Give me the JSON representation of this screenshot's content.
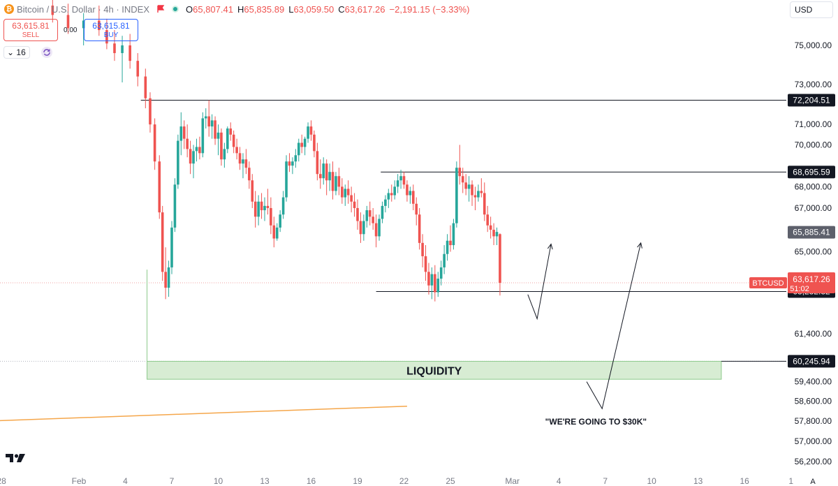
{
  "header": {
    "symbol": "Bitcoin / U.S. Dollar · 4h · INDEX",
    "open_label": "O",
    "open": "65,807.41",
    "high_label": "H",
    "high": "65,835.89",
    "low_label": "L",
    "low": "63,059.50",
    "close_label": "C",
    "close": "63,617.26",
    "change": "−2,191.15 (−3.33%)"
  },
  "trade": {
    "sell_price": "63,615.81",
    "sell_label": "SELL",
    "spread": "0.00",
    "buy_price": "63,615.81",
    "buy_label": "BUY"
  },
  "interval_value": "16",
  "currency": "USD",
  "chart_data": {
    "type": "candlestick",
    "title": "Bitcoin / U.S. Dollar · 4h · INDEX",
    "colors": {
      "up": "#26a69a",
      "down": "#ef5350",
      "level": "#131722",
      "liquidity_fill": "#d7ecd3",
      "liquidity_border": "#8cc98a",
      "trendline": "#f5a64a"
    },
    "y_axis": {
      "scale": "log",
      "ticks": [
        {
          "value": 56200,
          "label": "56,200.00"
        },
        {
          "value": 57000,
          "label": "57,000.00"
        },
        {
          "value": 57800,
          "label": "57,800.00"
        },
        {
          "value": 58600,
          "label": "58,600.00"
        },
        {
          "value": 59400,
          "label": "59,400.00"
        },
        {
          "value": 61400,
          "label": "61,400.00"
        },
        {
          "value": 65000,
          "label": "65,000.00"
        },
        {
          "value": 67000,
          "label": "67,000.00"
        },
        {
          "value": 68000,
          "label": "68,000.00"
        },
        {
          "value": 70000,
          "label": "70,000.00"
        },
        {
          "value": 71000,
          "label": "71,000.00"
        },
        {
          "value": 73000,
          "label": "73,000.00"
        },
        {
          "value": 75000,
          "label": "75,000.00"
        }
      ]
    },
    "x_axis": {
      "ticks": [
        {
          "day": -4,
          "label": "28"
        },
        {
          "day": 1,
          "label": "Feb"
        },
        {
          "day": 4,
          "label": "4"
        },
        {
          "day": 7,
          "label": "7"
        },
        {
          "day": 10,
          "label": "10"
        },
        {
          "day": 13,
          "label": "13"
        },
        {
          "day": 16,
          "label": "16"
        },
        {
          "day": 19,
          "label": "19"
        },
        {
          "day": 22,
          "label": "22"
        },
        {
          "day": 25,
          "label": "25"
        },
        {
          "day": 29,
          "label": "Mar"
        },
        {
          "day": 32,
          "label": "4"
        },
        {
          "day": 35,
          "label": "7"
        },
        {
          "day": 38,
          "label": "10"
        },
        {
          "day": 41,
          "label": "13"
        },
        {
          "day": 44,
          "label": "16"
        },
        {
          "day": 47,
          "label": "1"
        }
      ],
      "auto_label": "A"
    },
    "levels": [
      {
        "name": "resistance-72204",
        "value": 72204.51,
        "label": "72,204.51",
        "from_day": 5.0
      },
      {
        "name": "resistance-68695",
        "value": 68695.59,
        "label": "68,695.59",
        "from_day": 20.5
      },
      {
        "name": "support-63232",
        "value": 63232.32,
        "label": "63,232.32",
        "from_day": 20.2
      },
      {
        "name": "liquidity-60245",
        "value": 60245.94,
        "label": "60,245.94",
        "from_day": 42.5
      }
    ],
    "last_price": {
      "ticker": "BTCUSD",
      "value": 63617.26,
      "label": "63,617.26",
      "countdown": "51:02"
    },
    "marker_65885": {
      "value": 65885.41,
      "label": "65,885.41"
    },
    "liquidity_zone": {
      "label": "LIQUIDITY",
      "top": 60245.94,
      "bottom": 59500,
      "from_day": 5.4,
      "to_day": 42.5
    },
    "annotation": "\"WE'RE GOING TO $30K\"",
    "projection_lines": [
      [
        [
          30.0,
          63100
        ],
        [
          30.6,
          62050
        ],
        [
          31.5,
          65350
        ]
      ],
      [
        [
          33.8,
          59400
        ],
        [
          34.8,
          58300
        ],
        [
          37.3,
          65400
        ]
      ]
    ],
    "trendline": [
      [
        -5,
        57800
      ],
      [
        22.2,
        58400
      ]
    ],
    "series": [
      {
        "d": -0.7,
        "o": 77100,
        "h": 77400,
        "l": 76200,
        "c": 76600
      },
      {
        "d": 0.3,
        "o": 76600,
        "h": 77200,
        "l": 75600,
        "c": 75900
      },
      {
        "d": 1.3,
        "o": 75900,
        "h": 76700,
        "l": 75000,
        "c": 76300
      },
      {
        "d": 2.3,
        "o": 76300,
        "h": 77100,
        "l": 75500,
        "c": 75800
      },
      {
        "d": 2.8,
        "o": 75800,
        "h": 76400,
        "l": 74800,
        "c": 75100
      },
      {
        "d": 3.3,
        "o": 75100,
        "h": 75800,
        "l": 74200,
        "c": 74600
      },
      {
        "d": 3.8,
        "o": 74600,
        "h": 75500,
        "l": 73100,
        "c": 75000
      },
      {
        "d": 4.3,
        "o": 75000,
        "h": 75600,
        "l": 73800,
        "c": 74200
      },
      {
        "d": 4.8,
        "o": 74200,
        "h": 74600,
        "l": 72900,
        "c": 73400
      },
      {
        "d": 5.3,
        "o": 73400,
        "h": 73800,
        "l": 71800,
        "c": 72300
      },
      {
        "d": 5.6,
        "o": 72300,
        "h": 72600,
        "l": 70600,
        "c": 71000
      },
      {
        "d": 5.9,
        "o": 71000,
        "h": 71300,
        "l": 68800,
        "c": 69200
      },
      {
        "d": 6.2,
        "o": 69200,
        "h": 69500,
        "l": 66500,
        "c": 66800
      },
      {
        "d": 6.4,
        "o": 66800,
        "h": 67100,
        "l": 63700,
        "c": 64100
      },
      {
        "d": 6.6,
        "o": 64100,
        "h": 65200,
        "l": 62900,
        "c": 63400
      },
      {
        "d": 6.8,
        "o": 63400,
        "h": 64600,
        "l": 63000,
        "c": 64300
      },
      {
        "d": 7.0,
        "o": 64300,
        "h": 66400,
        "l": 64000,
        "c": 66100
      },
      {
        "d": 7.2,
        "o": 66100,
        "h": 68400,
        "l": 65900,
        "c": 68100
      },
      {
        "d": 7.4,
        "o": 68100,
        "h": 70500,
        "l": 67900,
        "c": 70200
      },
      {
        "d": 7.6,
        "o": 70200,
        "h": 71600,
        "l": 69500,
        "c": 70900
      },
      {
        "d": 7.8,
        "o": 70900,
        "h": 71200,
        "l": 69800,
        "c": 70300
      },
      {
        "d": 8.0,
        "o": 70300,
        "h": 71000,
        "l": 69400,
        "c": 69800
      },
      {
        "d": 8.2,
        "o": 69800,
        "h": 70200,
        "l": 68600,
        "c": 69100
      },
      {
        "d": 8.4,
        "o": 69100,
        "h": 70000,
        "l": 68400,
        "c": 69700
      },
      {
        "d": 8.6,
        "o": 69700,
        "h": 70300,
        "l": 69200,
        "c": 69900
      },
      {
        "d": 8.8,
        "o": 69900,
        "h": 70400,
        "l": 69300,
        "c": 69600
      },
      {
        "d": 9.0,
        "o": 69600,
        "h": 71600,
        "l": 69400,
        "c": 71300
      },
      {
        "d": 9.2,
        "o": 71300,
        "h": 71800,
        "l": 70800,
        "c": 71400
      },
      {
        "d": 9.4,
        "o": 71400,
        "h": 72200,
        "l": 70400,
        "c": 70900
      },
      {
        "d": 9.6,
        "o": 70900,
        "h": 71500,
        "l": 70300,
        "c": 71200
      },
      {
        "d": 9.8,
        "o": 71200,
        "h": 71400,
        "l": 70000,
        "c": 70300
      },
      {
        "d": 10.0,
        "o": 70300,
        "h": 71000,
        "l": 69500,
        "c": 70600
      },
      {
        "d": 10.2,
        "o": 70600,
        "h": 70800,
        "l": 69000,
        "c": 69300
      },
      {
        "d": 10.4,
        "o": 69300,
        "h": 70100,
        "l": 68900,
        "c": 69800
      },
      {
        "d": 10.6,
        "o": 69800,
        "h": 70900,
        "l": 69600,
        "c": 70800
      },
      {
        "d": 10.8,
        "o": 70800,
        "h": 71100,
        "l": 70200,
        "c": 70500
      },
      {
        "d": 11.0,
        "o": 70500,
        "h": 70700,
        "l": 69600,
        "c": 69900
      },
      {
        "d": 11.2,
        "o": 69900,
        "h": 70300,
        "l": 69300,
        "c": 69600
      },
      {
        "d": 11.4,
        "o": 69600,
        "h": 69900,
        "l": 68800,
        "c": 69100
      },
      {
        "d": 11.6,
        "o": 69100,
        "h": 69600,
        "l": 68400,
        "c": 69300
      },
      {
        "d": 11.8,
        "o": 69300,
        "h": 69800,
        "l": 68600,
        "c": 68900
      },
      {
        "d": 12.0,
        "o": 68900,
        "h": 69200,
        "l": 67900,
        "c": 68300
      },
      {
        "d": 12.2,
        "o": 68300,
        "h": 68600,
        "l": 67000,
        "c": 67300
      },
      {
        "d": 12.4,
        "o": 67300,
        "h": 67800,
        "l": 66100,
        "c": 66600
      },
      {
        "d": 12.6,
        "o": 66600,
        "h": 67600,
        "l": 66200,
        "c": 67300
      },
      {
        "d": 12.8,
        "o": 67300,
        "h": 67700,
        "l": 66500,
        "c": 66900
      },
      {
        "d": 13.0,
        "o": 66900,
        "h": 67500,
        "l": 66400,
        "c": 67100
      },
      {
        "d": 13.2,
        "o": 67100,
        "h": 67900,
        "l": 66700,
        "c": 67000
      },
      {
        "d": 13.4,
        "o": 67000,
        "h": 67500,
        "l": 65800,
        "c": 66200
      },
      {
        "d": 13.6,
        "o": 66200,
        "h": 66600,
        "l": 65200,
        "c": 65600
      },
      {
        "d": 13.8,
        "o": 65600,
        "h": 66300,
        "l": 65500,
        "c": 66100
      },
      {
        "d": 14.0,
        "o": 66100,
        "h": 66900,
        "l": 65900,
        "c": 66700
      },
      {
        "d": 14.2,
        "o": 66700,
        "h": 67800,
        "l": 66500,
        "c": 67500
      },
      {
        "d": 14.4,
        "o": 67500,
        "h": 69500,
        "l": 67300,
        "c": 69200
      },
      {
        "d": 14.6,
        "o": 69200,
        "h": 69600,
        "l": 68700,
        "c": 69000
      },
      {
        "d": 14.8,
        "o": 69000,
        "h": 69400,
        "l": 68600,
        "c": 69200
      },
      {
        "d": 15.0,
        "o": 69200,
        "h": 69800,
        "l": 68900,
        "c": 69500
      },
      {
        "d": 15.2,
        "o": 69500,
        "h": 70300,
        "l": 69200,
        "c": 70100
      },
      {
        "d": 15.4,
        "o": 70100,
        "h": 70500,
        "l": 69600,
        "c": 69900
      },
      {
        "d": 15.6,
        "o": 69900,
        "h": 70400,
        "l": 69500,
        "c": 70300
      },
      {
        "d": 15.8,
        "o": 70300,
        "h": 71100,
        "l": 70100,
        "c": 70900
      },
      {
        "d": 16.0,
        "o": 70900,
        "h": 71200,
        "l": 70200,
        "c": 70500
      },
      {
        "d": 16.2,
        "o": 70500,
        "h": 70700,
        "l": 69400,
        "c": 69700
      },
      {
        "d": 16.4,
        "o": 69700,
        "h": 70100,
        "l": 68300,
        "c": 68600
      },
      {
        "d": 16.6,
        "o": 68600,
        "h": 69300,
        "l": 67900,
        "c": 68400
      },
      {
        "d": 16.8,
        "o": 68400,
        "h": 69400,
        "l": 68100,
        "c": 69100
      },
      {
        "d": 17.0,
        "o": 69100,
        "h": 69300,
        "l": 67600,
        "c": 68300
      },
      {
        "d": 17.2,
        "o": 68300,
        "h": 69100,
        "l": 67800,
        "c": 68700
      },
      {
        "d": 17.4,
        "o": 68700,
        "h": 69200,
        "l": 67400,
        "c": 67800
      },
      {
        "d": 17.6,
        "o": 67800,
        "h": 68700,
        "l": 67600,
        "c": 68500
      },
      {
        "d": 17.8,
        "o": 68500,
        "h": 68900,
        "l": 67600,
        "c": 68000
      },
      {
        "d": 18.0,
        "o": 68000,
        "h": 68400,
        "l": 67200,
        "c": 67500
      },
      {
        "d": 18.2,
        "o": 67500,
        "h": 68100,
        "l": 67100,
        "c": 67900
      },
      {
        "d": 18.4,
        "o": 67900,
        "h": 68300,
        "l": 67200,
        "c": 67600
      },
      {
        "d": 18.6,
        "o": 67600,
        "h": 68000,
        "l": 66800,
        "c": 67300
      },
      {
        "d": 18.8,
        "o": 67300,
        "h": 67700,
        "l": 66600,
        "c": 67000
      },
      {
        "d": 19.0,
        "o": 67000,
        "h": 67400,
        "l": 66000,
        "c": 66400
      },
      {
        "d": 19.2,
        "o": 66400,
        "h": 66800,
        "l": 65400,
        "c": 65800
      },
      {
        "d": 19.4,
        "o": 65800,
        "h": 66700,
        "l": 65500,
        "c": 66400
      },
      {
        "d": 19.6,
        "o": 66400,
        "h": 67100,
        "l": 66100,
        "c": 66900
      },
      {
        "d": 19.8,
        "o": 66900,
        "h": 67300,
        "l": 66200,
        "c": 66600
      },
      {
        "d": 20.0,
        "o": 66600,
        "h": 67000,
        "l": 66000,
        "c": 66300
      },
      {
        "d": 20.2,
        "o": 66300,
        "h": 66700,
        "l": 65200,
        "c": 65700
      },
      {
        "d": 20.4,
        "o": 65700,
        "h": 66700,
        "l": 65500,
        "c": 66500
      },
      {
        "d": 20.6,
        "o": 66500,
        "h": 67300,
        "l": 66300,
        "c": 67100
      },
      {
        "d": 20.8,
        "o": 67100,
        "h": 67600,
        "l": 66800,
        "c": 67400
      },
      {
        "d": 21.0,
        "o": 67400,
        "h": 67900,
        "l": 67000,
        "c": 67700
      },
      {
        "d": 21.2,
        "o": 67700,
        "h": 68100,
        "l": 67300,
        "c": 67600
      },
      {
        "d": 21.4,
        "o": 67600,
        "h": 68300,
        "l": 67400,
        "c": 68000
      },
      {
        "d": 21.6,
        "o": 68000,
        "h": 68600,
        "l": 67700,
        "c": 68300
      },
      {
        "d": 21.8,
        "o": 68300,
        "h": 68800,
        "l": 67900,
        "c": 68500
      },
      {
        "d": 22.0,
        "o": 68500,
        "h": 68700,
        "l": 67900,
        "c": 68100
      },
      {
        "d": 22.2,
        "o": 68100,
        "h": 68300,
        "l": 67300,
        "c": 67600
      },
      {
        "d": 22.4,
        "o": 67600,
        "h": 68000,
        "l": 67200,
        "c": 67800
      },
      {
        "d": 22.6,
        "o": 67800,
        "h": 68100,
        "l": 66900,
        "c": 67200
      },
      {
        "d": 22.8,
        "o": 67200,
        "h": 67500,
        "l": 66200,
        "c": 66700
      },
      {
        "d": 23.0,
        "o": 66700,
        "h": 67000,
        "l": 65100,
        "c": 65400
      },
      {
        "d": 23.2,
        "o": 65400,
        "h": 65800,
        "l": 64300,
        "c": 64800
      },
      {
        "d": 23.4,
        "o": 64800,
        "h": 65300,
        "l": 63700,
        "c": 64100
      },
      {
        "d": 23.6,
        "o": 64100,
        "h": 64500,
        "l": 63100,
        "c": 63500
      },
      {
        "d": 23.8,
        "o": 63500,
        "h": 64300,
        "l": 62900,
        "c": 64000
      },
      {
        "d": 24.0,
        "o": 64000,
        "h": 64400,
        "l": 62800,
        "c": 63200
      },
      {
        "d": 24.2,
        "o": 63200,
        "h": 64100,
        "l": 63000,
        "c": 63800
      },
      {
        "d": 24.4,
        "o": 63800,
        "h": 64600,
        "l": 63500,
        "c": 64300
      },
      {
        "d": 24.6,
        "o": 64300,
        "h": 65300,
        "l": 64000,
        "c": 64900
      },
      {
        "d": 24.8,
        "o": 64900,
        "h": 65800,
        "l": 64600,
        "c": 65500
      },
      {
        "d": 25.0,
        "o": 65500,
        "h": 66200,
        "l": 65000,
        "c": 65300
      },
      {
        "d": 25.2,
        "o": 65300,
        "h": 66500,
        "l": 65100,
        "c": 66300
      },
      {
        "d": 25.4,
        "o": 66300,
        "h": 69200,
        "l": 66100,
        "c": 68900
      },
      {
        "d": 25.6,
        "o": 68900,
        "h": 70000,
        "l": 68100,
        "c": 68500
      },
      {
        "d": 25.8,
        "o": 68500,
        "h": 68900,
        "l": 67700,
        "c": 68200
      },
      {
        "d": 26.0,
        "o": 68200,
        "h": 68600,
        "l": 67600,
        "c": 67900
      },
      {
        "d": 26.2,
        "o": 67900,
        "h": 68500,
        "l": 67300,
        "c": 68100
      },
      {
        "d": 26.4,
        "o": 68100,
        "h": 68300,
        "l": 67100,
        "c": 67600
      },
      {
        "d": 26.6,
        "o": 67600,
        "h": 68000,
        "l": 66900,
        "c": 67500
      },
      {
        "d": 26.8,
        "o": 67500,
        "h": 68100,
        "l": 67300,
        "c": 67800
      },
      {
        "d": 27.0,
        "o": 67800,
        "h": 68400,
        "l": 67500,
        "c": 67700
      },
      {
        "d": 27.2,
        "o": 67700,
        "h": 68200,
        "l": 66400,
        "c": 66700
      },
      {
        "d": 27.4,
        "o": 66700,
        "h": 67100,
        "l": 65900,
        "c": 66200
      },
      {
        "d": 27.6,
        "o": 66200,
        "h": 66600,
        "l": 65600,
        "c": 66000
      },
      {
        "d": 27.8,
        "o": 66000,
        "h": 66300,
        "l": 65300,
        "c": 65700
      },
      {
        "d": 28.0,
        "o": 65700,
        "h": 66100,
        "l": 65300,
        "c": 65900
      },
      {
        "d": 28.2,
        "o": 65800,
        "h": 65835,
        "l": 63059,
        "c": 63617
      }
    ]
  }
}
